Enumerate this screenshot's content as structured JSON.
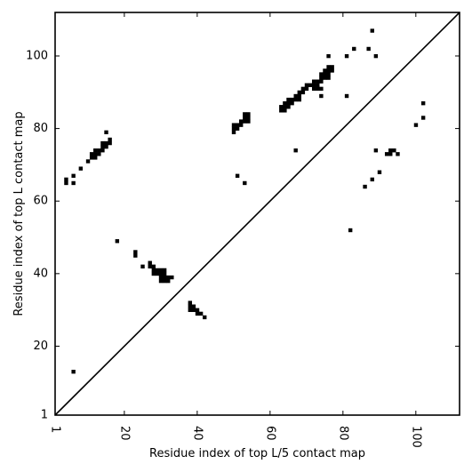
{
  "chart_data": {
    "type": "scatter",
    "title": "",
    "xlabel": "Residue index of top L/5 contact map",
    "ylabel": "Residue index of top L contact map",
    "xlim": [
      1,
      112
    ],
    "ylim": [
      1,
      112
    ],
    "xticks": [
      1,
      20,
      40,
      60,
      80,
      100
    ],
    "yticks": [
      1,
      20,
      40,
      60,
      80,
      100
    ],
    "xtick_labels": [
      "1",
      "20",
      "40",
      "60",
      "80",
      "100"
    ],
    "ytick_labels": [
      "1",
      "20",
      "40",
      "60",
      "80",
      "100"
    ],
    "x_tick_rotation": 90,
    "diagonal": true,
    "grid": false,
    "marker_color": "#000000",
    "series": [
      {
        "points": [
          [
            4,
            66
          ],
          [
            4,
            65
          ],
          [
            6,
            67
          ],
          [
            6,
            65
          ],
          [
            8,
            69
          ],
          [
            10,
            71
          ],
          [
            11,
            72
          ],
          [
            11,
            73
          ],
          [
            12,
            72
          ],
          [
            12,
            73
          ],
          [
            12,
            74
          ],
          [
            13,
            73
          ],
          [
            13,
            74
          ],
          [
            14,
            74
          ],
          [
            14,
            75
          ],
          [
            14,
            76
          ],
          [
            15,
            75
          ],
          [
            15,
            76
          ],
          [
            15,
            79
          ],
          [
            16,
            76
          ],
          [
            16,
            77
          ],
          [
            6,
            13
          ],
          [
            18,
            49
          ],
          [
            23,
            46
          ],
          [
            23,
            45
          ],
          [
            25,
            42
          ],
          [
            27,
            43
          ],
          [
            27,
            42
          ],
          [
            28,
            42
          ],
          [
            28,
            41
          ],
          [
            28,
            40
          ],
          [
            29,
            41
          ],
          [
            29,
            40
          ],
          [
            30,
            41
          ],
          [
            30,
            40
          ],
          [
            30,
            39
          ],
          [
            30,
            38
          ],
          [
            31,
            41
          ],
          [
            31,
            40
          ],
          [
            31,
            39
          ],
          [
            31,
            38
          ],
          [
            32,
            39
          ],
          [
            32,
            38
          ],
          [
            33,
            39
          ],
          [
            38,
            32
          ],
          [
            38,
            31
          ],
          [
            38,
            30
          ],
          [
            39,
            31
          ],
          [
            39,
            30
          ],
          [
            40,
            30
          ],
          [
            40,
            29
          ],
          [
            41,
            29
          ],
          [
            42,
            28
          ],
          [
            50,
            81
          ],
          [
            50,
            80
          ],
          [
            50,
            79
          ],
          [
            51,
            81
          ],
          [
            51,
            80
          ],
          [
            51,
            67
          ],
          [
            52,
            82
          ],
          [
            52,
            81
          ],
          [
            53,
            84
          ],
          [
            53,
            83
          ],
          [
            53,
            82
          ],
          [
            53,
            65
          ],
          [
            54,
            84
          ],
          [
            54,
            83
          ],
          [
            54,
            82
          ],
          [
            63,
            86
          ],
          [
            63,
            85
          ],
          [
            64,
            87
          ],
          [
            64,
            86
          ],
          [
            64,
            85
          ],
          [
            65,
            88
          ],
          [
            65,
            87
          ],
          [
            65,
            86
          ],
          [
            66,
            88
          ],
          [
            66,
            87
          ],
          [
            67,
            89
          ],
          [
            67,
            88
          ],
          [
            67,
            74
          ],
          [
            68,
            90
          ],
          [
            68,
            89
          ],
          [
            68,
            88
          ],
          [
            69,
            91
          ],
          [
            69,
            90
          ],
          [
            70,
            91
          ],
          [
            70,
            92
          ],
          [
            71,
            92
          ],
          [
            72,
            93
          ],
          [
            72,
            92
          ],
          [
            72,
            91
          ],
          [
            73,
            93
          ],
          [
            73,
            92
          ],
          [
            73,
            91
          ],
          [
            74,
            95
          ],
          [
            74,
            94
          ],
          [
            74,
            93
          ],
          [
            74,
            91
          ],
          [
            74,
            89
          ],
          [
            75,
            96
          ],
          [
            75,
            95
          ],
          [
            75,
            94
          ],
          [
            76,
            97
          ],
          [
            76,
            96
          ],
          [
            76,
            95
          ],
          [
            76,
            94
          ],
          [
            76,
            100
          ],
          [
            77,
            97
          ],
          [
            77,
            96
          ],
          [
            81,
            100
          ],
          [
            81,
            89
          ],
          [
            82,
            52
          ],
          [
            83,
            102
          ],
          [
            86,
            64
          ],
          [
            87,
            102
          ],
          [
            88,
            107
          ],
          [
            88,
            66
          ],
          [
            89,
            100
          ],
          [
            89,
            74
          ],
          [
            90,
            68
          ],
          [
            92,
            73
          ],
          [
            93,
            74
          ],
          [
            93,
            73
          ],
          [
            94,
            74
          ],
          [
            95,
            73
          ],
          [
            100,
            81
          ],
          [
            102,
            87
          ],
          [
            102,
            83
          ]
        ]
      }
    ]
  }
}
